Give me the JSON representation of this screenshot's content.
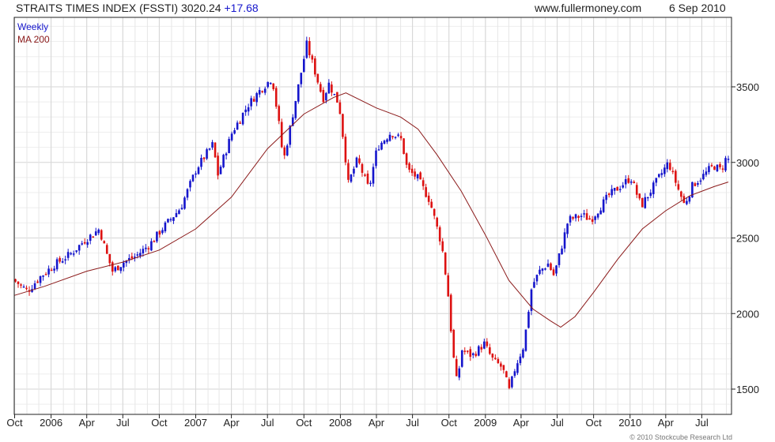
{
  "header": {
    "index_label": "STRAITS TIMES INDEX (FSSTI) 3020.24",
    "change": "+17.68",
    "site": "www.fullermoney.com",
    "date": "6 Sep 2010"
  },
  "legend": {
    "weekly": "Weekly",
    "ma": "MA 200"
  },
  "copyright": "© 2010 Stockcube Research Ltd",
  "colors": {
    "up": "#1515cc",
    "down": "#dd1111",
    "ma": "#8b1a1a",
    "grid": "#d6d6d6",
    "frame": "#222222",
    "change": "#1515cc"
  },
  "chart_data": {
    "type": "candlestick",
    "title": "STRAITS TIMES INDEX (FSSTI) 3020.24",
    "x_tick_labels": [
      "Oct",
      "2006",
      "Apr",
      "Jul",
      "Oct",
      "2007",
      "Apr",
      "Jul",
      "Oct",
      "2008",
      "Apr",
      "Jul",
      "Oct",
      "2009",
      "Apr",
      "Jul",
      "Oct",
      "2010",
      "Apr",
      "Jul"
    ],
    "y_ticks": [
      1500,
      2000,
      2500,
      3000,
      3500
    ],
    "ylim": [
      1380,
      3900
    ],
    "grid": true,
    "legend_position": "top-left",
    "series": [
      {
        "name": "Weekly",
        "kind": "candlestick",
        "x_start": "2005-09-30",
        "x_end": "2010-09-06",
        "anchors": [
          [
            "2005-10-01",
            2230
          ],
          [
            "2005-11-10",
            2150
          ],
          [
            "2005-12-10",
            2240
          ],
          [
            "2006-01-15",
            2320
          ],
          [
            "2006-03-01",
            2400
          ],
          [
            "2006-04-01",
            2480
          ],
          [
            "2006-05-10",
            2560
          ],
          [
            "2006-05-25",
            2420
          ],
          [
            "2006-06-12",
            2280
          ],
          [
            "2006-07-10",
            2340
          ],
          [
            "2006-08-10",
            2380
          ],
          [
            "2006-09-15",
            2460
          ],
          [
            "2006-10-15",
            2560
          ],
          [
            "2006-12-01",
            2700
          ],
          [
            "2007-01-10",
            2960
          ],
          [
            "2007-02-20",
            3120
          ],
          [
            "2007-03-05",
            2920
          ],
          [
            "2007-04-10",
            3200
          ],
          [
            "2007-05-20",
            3380
          ],
          [
            "2007-06-20",
            3480
          ],
          [
            "2007-07-20",
            3560
          ],
          [
            "2007-08-10",
            3180
          ],
          [
            "2007-08-17",
            3000
          ],
          [
            "2007-09-10",
            3320
          ],
          [
            "2007-10-15",
            3780
          ],
          [
            "2007-11-05",
            3600
          ],
          [
            "2007-11-25",
            3420
          ],
          [
            "2007-12-10",
            3520
          ],
          [
            "2008-01-05",
            3380
          ],
          [
            "2008-01-20",
            3050
          ],
          [
            "2008-01-28",
            2860
          ],
          [
            "2008-02-20",
            3020
          ],
          [
            "2008-03-20",
            2820
          ],
          [
            "2008-04-10",
            3100
          ],
          [
            "2008-05-15",
            3200
          ],
          [
            "2008-06-10",
            3150
          ],
          [
            "2008-06-25",
            2950
          ],
          [
            "2008-07-20",
            2900
          ],
          [
            "2008-08-20",
            2750
          ],
          [
            "2008-09-20",
            2450
          ],
          [
            "2008-10-05",
            2150
          ],
          [
            "2008-10-18",
            1740
          ],
          [
            "2008-10-28",
            1540
          ],
          [
            "2008-11-10",
            1760
          ],
          [
            "2008-12-05",
            1720
          ],
          [
            "2009-01-05",
            1800
          ],
          [
            "2009-01-25",
            1700
          ],
          [
            "2009-02-20",
            1640
          ],
          [
            "2009-03-09",
            1490
          ],
          [
            "2009-03-25",
            1650
          ],
          [
            "2009-04-15",
            1790
          ],
          [
            "2009-05-05",
            2180
          ],
          [
            "2009-05-25",
            2280
          ],
          [
            "2009-06-15",
            2330
          ],
          [
            "2009-06-30",
            2250
          ],
          [
            "2009-07-20",
            2450
          ],
          [
            "2009-08-05",
            2620
          ],
          [
            "2009-09-10",
            2650
          ],
          [
            "2009-10-01",
            2620
          ],
          [
            "2009-11-15",
            2780
          ],
          [
            "2010-01-10",
            2900
          ],
          [
            "2010-02-05",
            2710
          ],
          [
            "2010-03-10",
            2850
          ],
          [
            "2010-04-15",
            3000
          ],
          [
            "2010-05-10",
            2820
          ],
          [
            "2010-05-25",
            2720
          ],
          [
            "2010-06-15",
            2850
          ],
          [
            "2010-07-15",
            2920
          ],
          [
            "2010-08-05",
            2980
          ],
          [
            "2010-08-25",
            2950
          ],
          [
            "2010-09-06",
            3020
          ]
        ]
      },
      {
        "name": "MA 200",
        "kind": "line",
        "points": [
          [
            "2005-09-30",
            2120
          ],
          [
            "2005-12-15",
            2180
          ],
          [
            "2006-04-01",
            2280
          ],
          [
            "2006-07-01",
            2340
          ],
          [
            "2006-10-01",
            2420
          ],
          [
            "2007-01-01",
            2560
          ],
          [
            "2007-04-01",
            2770
          ],
          [
            "2007-07-01",
            3090
          ],
          [
            "2007-10-01",
            3320
          ],
          [
            "2007-12-15",
            3430
          ],
          [
            "2008-01-15",
            3460
          ],
          [
            "2008-04-01",
            3360
          ],
          [
            "2008-06-01",
            3300
          ],
          [
            "2008-07-15",
            3220
          ],
          [
            "2008-09-01",
            3050
          ],
          [
            "2008-11-01",
            2810
          ],
          [
            "2009-01-01",
            2520
          ],
          [
            "2009-03-01",
            2220
          ],
          [
            "2009-05-01",
            2030
          ],
          [
            "2009-06-15",
            1950
          ],
          [
            "2009-07-10",
            1910
          ],
          [
            "2009-08-15",
            1980
          ],
          [
            "2009-10-01",
            2140
          ],
          [
            "2009-12-01",
            2360
          ],
          [
            "2010-02-01",
            2560
          ],
          [
            "2010-04-01",
            2680
          ],
          [
            "2010-06-01",
            2780
          ],
          [
            "2010-08-01",
            2840
          ],
          [
            "2010-09-06",
            2870
          ]
        ]
      }
    ]
  }
}
